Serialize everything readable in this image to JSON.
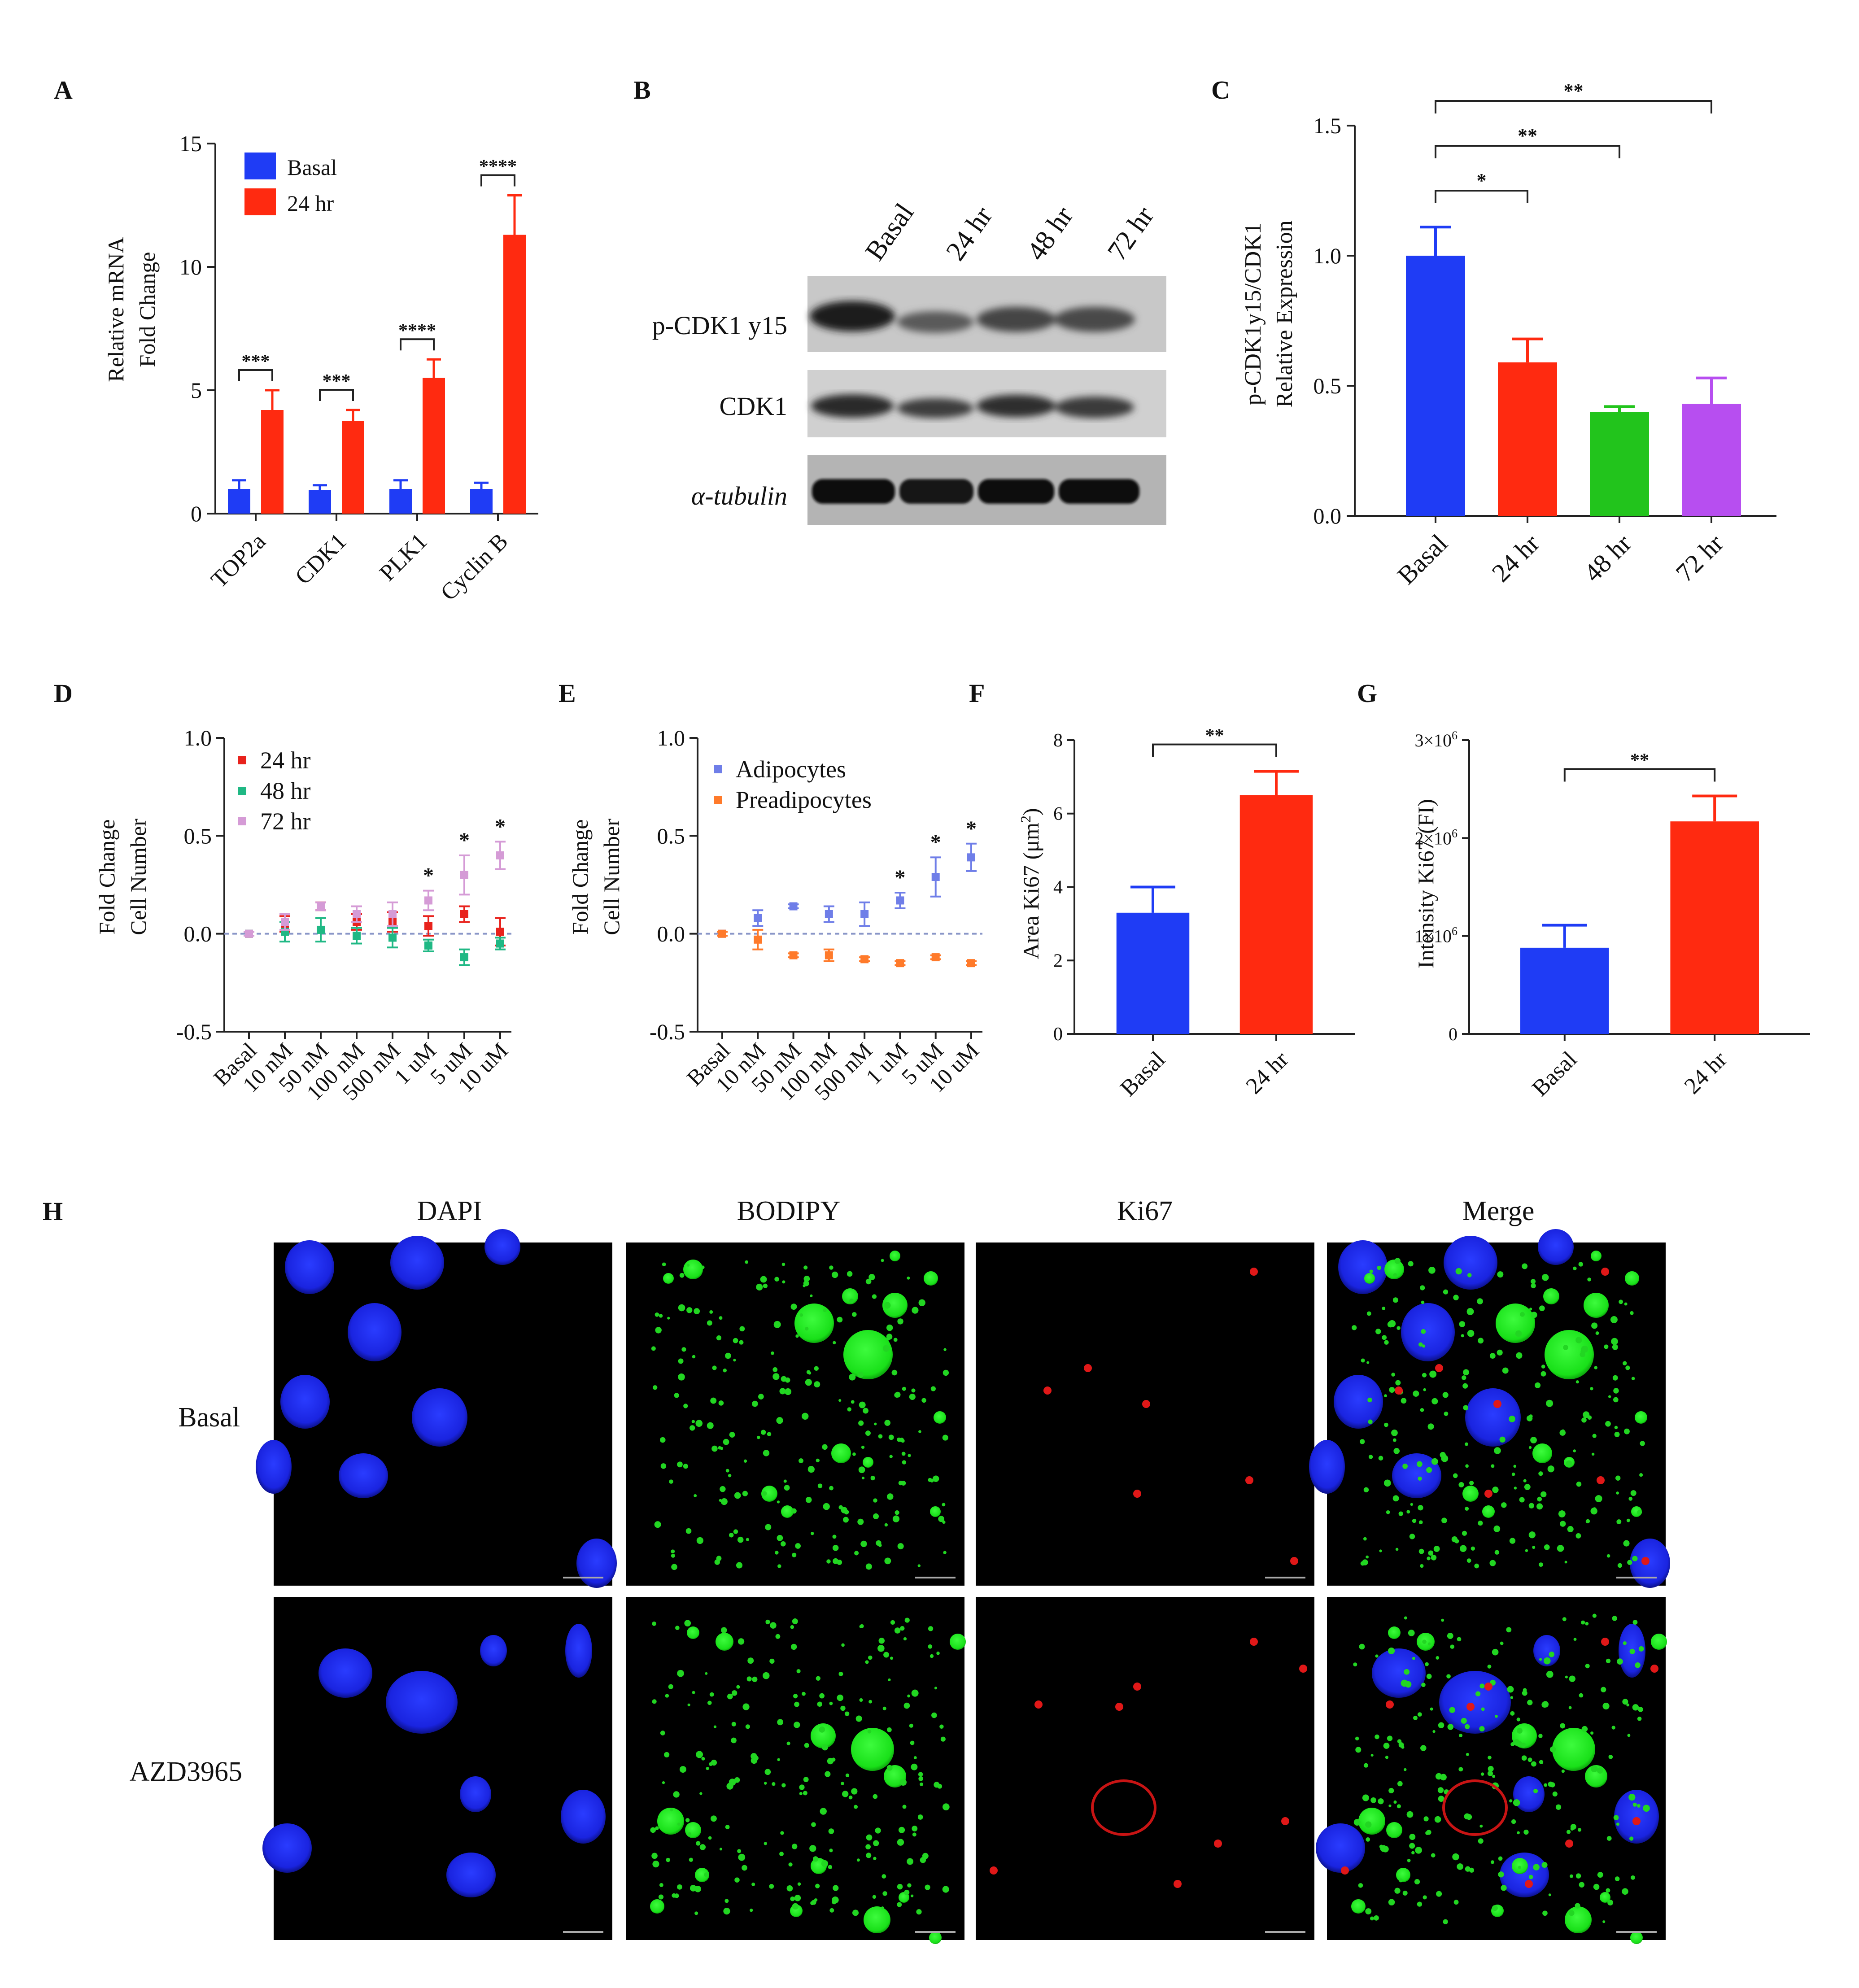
{
  "figure": {
    "panel_letters": [
      "A",
      "B",
      "C",
      "D",
      "E",
      "F",
      "G",
      "H"
    ],
    "colors": {
      "blue": "#1f3cf5",
      "red": "#ff2a10",
      "green": "#22c41c",
      "purple": "#b74ef0",
      "teal": "#1fb884",
      "pink": "#d59bd6",
      "orange": "#ff7a2a",
      "periwinkle": "#6f7ee8",
      "darkred": "#e8221c"
    }
  },
  "panels": {
    "A": {
      "letter": "A",
      "chart_data": {
        "type": "bar",
        "ylabel_lines": [
          "Relative mRNA",
          "Fold Change"
        ],
        "ylim": [
          0,
          15
        ],
        "yticks": [
          "0",
          "5",
          "10",
          "15"
        ],
        "categories": [
          "TOP2a",
          "CDK1",
          "PLK1",
          "Cyclin B"
        ],
        "series": [
          {
            "name": "Basal",
            "color": "#1f3cf5",
            "values": [
              1.0,
              0.95,
              1.0,
              1.0
            ],
            "errors": [
              0.35,
              0.2,
              0.35,
              0.25
            ]
          },
          {
            "name": "24 hr",
            "color": "#ff2a10",
            "values": [
              4.2,
              3.75,
              5.5,
              11.3
            ],
            "errors": [
              0.8,
              0.45,
              0.75,
              1.6
            ]
          }
        ],
        "significance": [
          "***",
          "***",
          "****",
          "****"
        ],
        "legend": "top-left"
      }
    },
    "B": {
      "letter": "B",
      "lane_labels": [
        "Basal",
        "24 hr",
        "48 hr",
        "72 hr"
      ],
      "row_labels": [
        "p-CDK1 y15",
        "CDK1",
        "α-tubulin"
      ]
    },
    "C": {
      "letter": "C",
      "chart_data": {
        "type": "bar",
        "ylabel_lines": [
          "p-CDK1y15/CDK1",
          "Relative Expression"
        ],
        "ylim": [
          0,
          1.5
        ],
        "yticks": [
          "0.0",
          "0.5",
          "1.0",
          "1.5"
        ],
        "categories": [
          "Basal",
          "24 hr",
          "48 hr",
          "72 hr"
        ],
        "values": [
          1.0,
          0.59,
          0.4,
          0.43
        ],
        "errors": [
          0.11,
          0.09,
          0.02,
          0.1
        ],
        "colors": [
          "#1f3cf5",
          "#ff2a10",
          "#22c41c",
          "#b74ef0"
        ],
        "brackets": [
          {
            "from": 0,
            "to": 1,
            "label": "*"
          },
          {
            "from": 0,
            "to": 2,
            "label": "**"
          },
          {
            "from": 0,
            "to": 3,
            "label": "**"
          }
        ]
      }
    },
    "D": {
      "letter": "D",
      "chart_data": {
        "type": "scatter",
        "ylabel_lines": [
          "Fold Change",
          "Cell Number"
        ],
        "ylim": [
          -0.5,
          1.0
        ],
        "yticks": [
          "-0.5",
          "0.0",
          "0.5",
          "1.0"
        ],
        "categories": [
          "Basal",
          "10 nM",
          "50 nM",
          "100 nM",
          "500 nM",
          "1 uM",
          "5 uM",
          "10 uM"
        ],
        "series": [
          {
            "name": "24 hr",
            "color": "#e8221c",
            "values": [
              0.0,
              0.05,
              0.14,
              0.06,
              0.06,
              0.04,
              0.1,
              0.01
            ],
            "errors": [
              0.01,
              0.04,
              0.02,
              0.04,
              0.05,
              0.05,
              0.04,
              0.07
            ]
          },
          {
            "name": "48 hr",
            "color": "#1fb884",
            "values": [
              0.0,
              0.01,
              0.02,
              -0.01,
              -0.02,
              -0.06,
              -0.12,
              -0.05
            ],
            "errors": [
              0.01,
              0.05,
              0.06,
              0.04,
              0.05,
              0.03,
              0.04,
              0.03
            ]
          },
          {
            "name": "72 hr",
            "color": "#d59bd6",
            "values": [
              0.0,
              0.06,
              0.14,
              0.1,
              0.1,
              0.17,
              0.3,
              0.4
            ],
            "errors": [
              0.01,
              0.04,
              0.02,
              0.04,
              0.06,
              0.05,
              0.1,
              0.07
            ]
          }
        ],
        "star_indices": [
          5,
          6,
          7
        ],
        "star_label": "*",
        "legend": "top-left",
        "reference_line": 0
      }
    },
    "E": {
      "letter": "E",
      "chart_data": {
        "type": "scatter",
        "ylabel_lines": [
          "Fold Change",
          "Cell Number"
        ],
        "ylim": [
          -0.5,
          1.0
        ],
        "yticks": [
          "-0.5",
          "0.0",
          "0.5",
          "1.0"
        ],
        "categories": [
          "Basal",
          "10 nM",
          "50 nM",
          "100 nM",
          "500 nM",
          "1 uM",
          "5 uM",
          "10 uM"
        ],
        "series": [
          {
            "name": "Adipocytes",
            "color": "#6f7ee8",
            "values": [
              0.0,
              0.08,
              0.14,
              0.1,
              0.1,
              0.17,
              0.29,
              0.39
            ],
            "errors": [
              0.01,
              0.04,
              0.01,
              0.04,
              0.06,
              0.04,
              0.1,
              0.07
            ]
          },
          {
            "name": "Preadipocytes",
            "color": "#ff7a2a",
            "values": [
              0.0,
              -0.03,
              -0.11,
              -0.11,
              -0.13,
              -0.15,
              -0.12,
              -0.15
            ],
            "errors": [
              0.01,
              0.05,
              0.01,
              0.03,
              0.01,
              0.01,
              0.01,
              0.01
            ]
          }
        ],
        "star_indices": [
          5,
          6,
          7
        ],
        "star_label": "*",
        "legend": "top-left",
        "reference_line": 0
      }
    },
    "F": {
      "letter": "F",
      "chart_data": {
        "type": "bar",
        "ylabel_parts": [
          "Area Ki67 (μm",
          "2",
          ")"
        ],
        "ylim": [
          0,
          8
        ],
        "yticks": [
          "0",
          "2",
          "4",
          "6",
          "8"
        ],
        "categories": [
          "Basal",
          "24 hr"
        ],
        "values": [
          3.3,
          6.5
        ],
        "errors": [
          0.7,
          0.65
        ],
        "colors": [
          "#1f3cf5",
          "#ff2a10"
        ],
        "significance": "**"
      }
    },
    "G": {
      "letter": "G",
      "chart_data": {
        "type": "bar",
        "ylabel": "Intensity Ki67 (FI)",
        "ylim": [
          0,
          3000000
        ],
        "yticks": [
          {
            "base": "0",
            "exp": ""
          },
          {
            "base": "1×10",
            "exp": "6"
          },
          {
            "base": "2×10",
            "exp": "6"
          },
          {
            "base": "3×10",
            "exp": "6"
          }
        ],
        "categories": [
          "Basal",
          "24 hr"
        ],
        "values": [
          880000,
          2170000
        ],
        "errors": [
          230000,
          260000
        ],
        "colors": [
          "#1f3cf5",
          "#ff2a10"
        ],
        "significance": "**"
      }
    },
    "H": {
      "letter": "H",
      "column_labels": [
        "DAPI",
        "BODIPY",
        "Ki67",
        "Merge"
      ],
      "row_labels": [
        "Basal",
        "AZD3965"
      ]
    }
  }
}
